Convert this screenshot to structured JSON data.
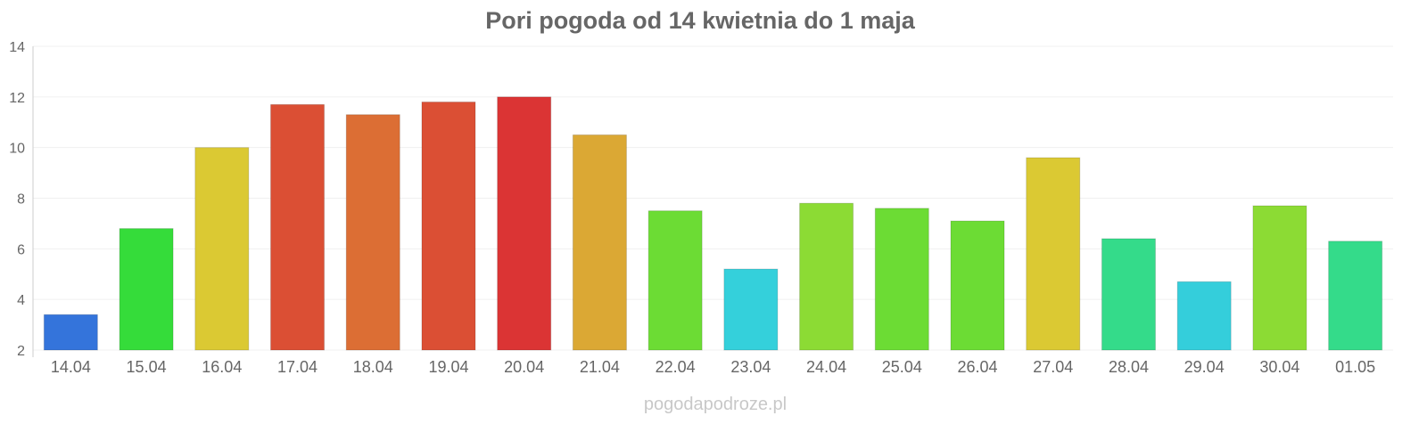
{
  "chart_data": {
    "type": "bar",
    "title": "Pori pogoda od 14 kwietnia do 1 maja",
    "xlabel": "",
    "ylabel": "",
    "ylim": [
      2,
      14
    ],
    "yticks": [
      2,
      4,
      6,
      8,
      10,
      12,
      14
    ],
    "grid": true,
    "categories": [
      "14.04",
      "15.04",
      "16.04",
      "17.04",
      "18.04",
      "19.04",
      "20.04",
      "21.04",
      "22.04",
      "23.04",
      "24.04",
      "25.04",
      "26.04",
      "27.04",
      "28.04",
      "29.04",
      "30.04",
      "01.05"
    ],
    "values": [
      3.4,
      6.8,
      10.0,
      11.7,
      11.3,
      11.8,
      12.0,
      10.5,
      7.5,
      5.2,
      7.8,
      7.6,
      7.1,
      9.6,
      6.4,
      4.7,
      7.7,
      6.3
    ],
    "colors": [
      "#3474db",
      "#35dc3a",
      "#dbc933",
      "#db4f34",
      "#dc6e34",
      "#db4f34",
      "#db3434",
      "#dba834",
      "#6cdc34",
      "#34d0db",
      "#8cdb34",
      "#6cdc34",
      "#6cdc34",
      "#dbc933",
      "#34db8a",
      "#34cedb",
      "#8cdb34",
      "#34db8a"
    ]
  },
  "watermark": "pogodapodroze.pl"
}
